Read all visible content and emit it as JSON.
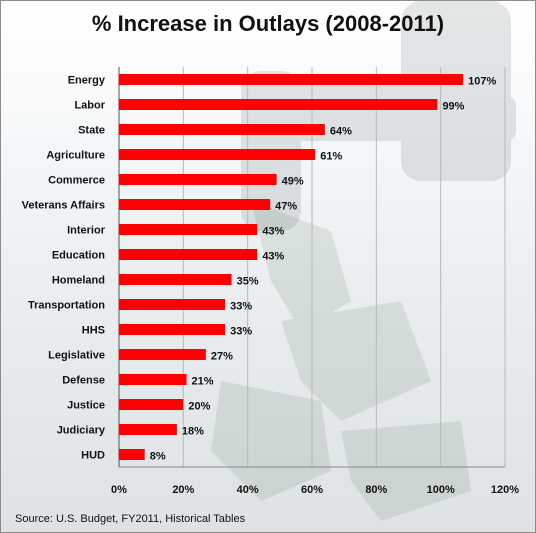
{
  "chart_data": {
    "type": "bar",
    "orientation": "horizontal",
    "title": "% Increase in Outlays (2008-2011)",
    "categories": [
      "Energy",
      "Labor",
      "State",
      "Agriculture",
      "Commerce",
      "Veterans Affairs",
      "Interior",
      "Education",
      "Homeland",
      "Transportation",
      "HHS",
      "Legislative",
      "Defense",
      "Justice",
      "Judiciary",
      "HUD"
    ],
    "values": [
      107,
      99,
      64,
      61,
      49,
      47,
      43,
      43,
      35,
      33,
      33,
      27,
      21,
      20,
      18,
      8
    ],
    "value_labels": [
      "107%",
      "99%",
      "64%",
      "61%",
      "49%",
      "47%",
      "43%",
      "43%",
      "35%",
      "33%",
      "33%",
      "27%",
      "21%",
      "20%",
      "18%",
      "8%"
    ],
    "xlim": [
      0,
      120
    ],
    "x_ticks": [
      0,
      20,
      40,
      60,
      80,
      100,
      120
    ],
    "x_tick_labels": [
      "0%",
      "20%",
      "40%",
      "60%",
      "80%",
      "100%",
      "120%"
    ],
    "grid": true,
    "bar_color": "#ff0000",
    "xlabel": "",
    "ylabel": ""
  },
  "source": "Source: U.S. Budget, FY2011, Historical Tables"
}
